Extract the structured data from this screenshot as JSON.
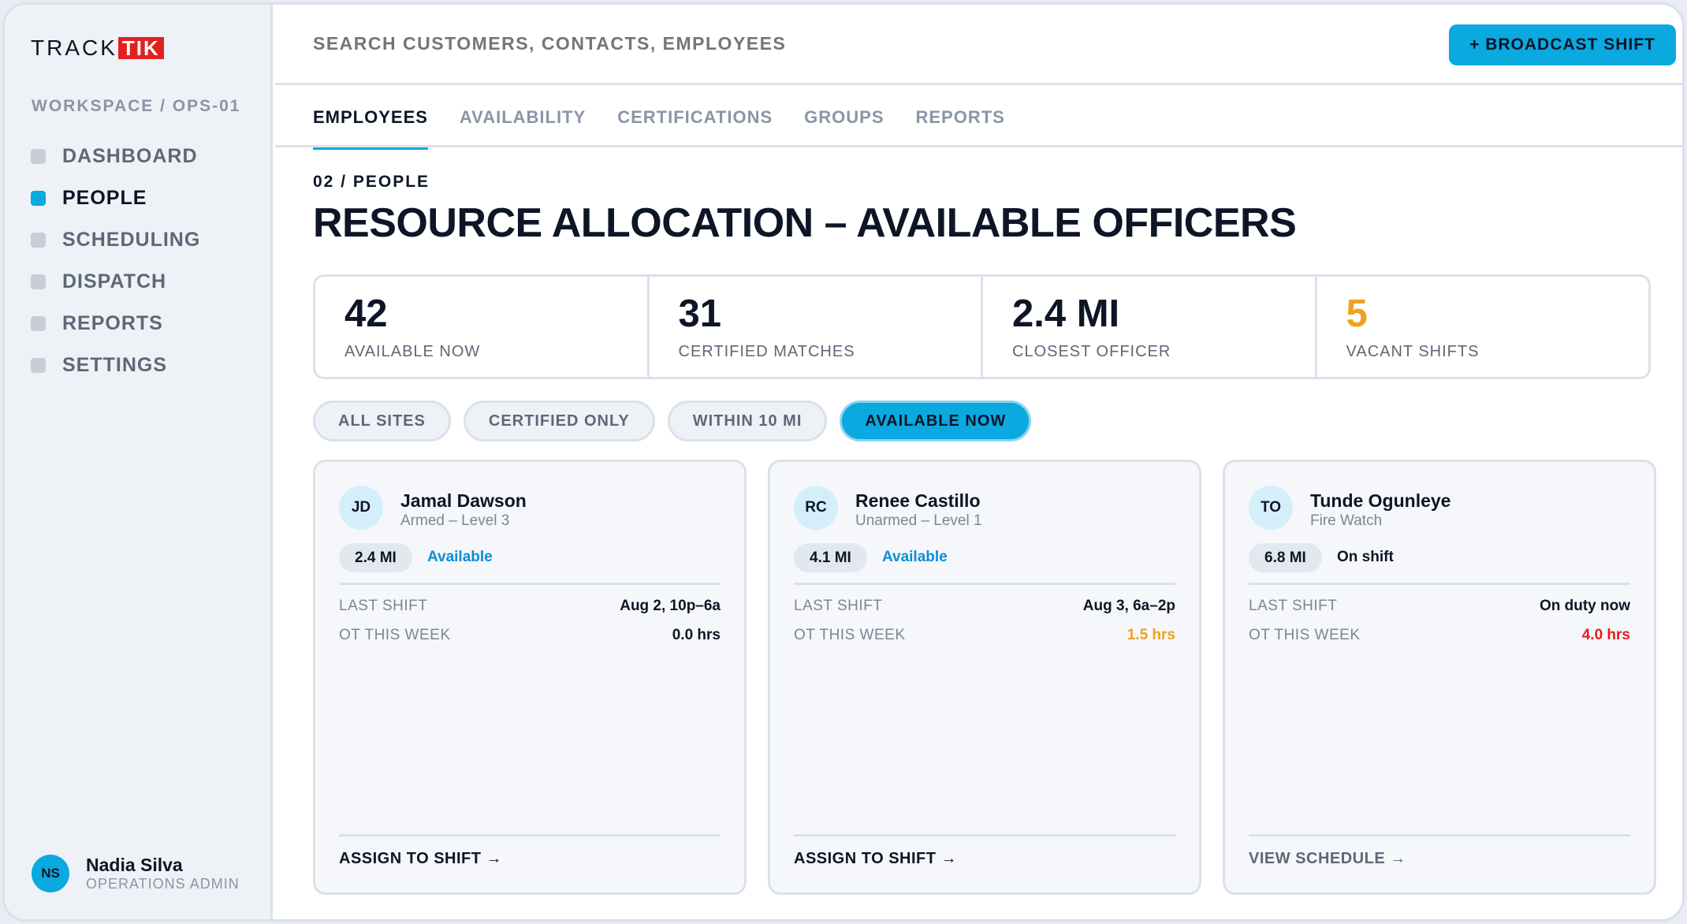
{
  "brand": {
    "track": "TRACK",
    "tik": "TIK"
  },
  "sidebar": {
    "workspace": "WORKSPACE / OPS-01",
    "items": [
      {
        "label": "DASHBOARD",
        "active": false
      },
      {
        "label": "PEOPLE",
        "active": true
      },
      {
        "label": "SCHEDULING",
        "active": false
      },
      {
        "label": "DISPATCH",
        "active": false
      },
      {
        "label": "REPORTS",
        "active": false
      },
      {
        "label": "SETTINGS",
        "active": false
      }
    ],
    "user": {
      "initials": "NS",
      "name": "Nadia Silva",
      "role": "OPERATIONS ADMIN"
    }
  },
  "topbar": {
    "search_placeholder": "SEARCH CUSTOMERS, CONTACTS, EMPLOYEES",
    "broadcast_label": "+ BROADCAST SHIFT"
  },
  "tabs": [
    {
      "label": "EMPLOYEES",
      "active": true
    },
    {
      "label": "AVAILABILITY",
      "active": false
    },
    {
      "label": "CERTIFICATIONS",
      "active": false
    },
    {
      "label": "GROUPS",
      "active": false
    },
    {
      "label": "REPORTS",
      "active": false
    }
  ],
  "page": {
    "breadcrumb": "02 / PEOPLE",
    "title": "RESOURCE ALLOCATION – AVAILABLE OFFICERS"
  },
  "stats": [
    {
      "value": "42",
      "label": "AVAILABLE NOW",
      "highlight": false
    },
    {
      "value": "31",
      "label": "CERTIFIED MATCHES",
      "highlight": false
    },
    {
      "value": "2.4 MI",
      "label": "CLOSEST OFFICER",
      "highlight": false
    },
    {
      "value": "5",
      "label": "VACANT SHIFTS",
      "highlight": true
    }
  ],
  "filters": [
    {
      "label": "ALL SITES",
      "active": false
    },
    {
      "label": "CERTIFIED ONLY",
      "active": false
    },
    {
      "label": "WITHIN 10 MI",
      "active": false
    },
    {
      "label": "AVAILABLE NOW",
      "active": true
    }
  ],
  "officers": [
    {
      "initials": "JD",
      "name": "Jamal Dawson",
      "role": "Armed – Level 3",
      "distance": "2.4 MI",
      "status": "Available",
      "status_type": "available",
      "last_shift_label": "LAST SHIFT",
      "last_shift": "Aug 2, 10p–6a",
      "ot_label": "OT THIS WEEK",
      "ot": "0.0 hrs",
      "ot_level": "normal",
      "action": "ASSIGN TO SHIFT →",
      "action_type": "primary"
    },
    {
      "initials": "RC",
      "name": "Renee Castillo",
      "role": "Unarmed – Level 1",
      "distance": "4.1 MI",
      "status": "Available",
      "status_type": "available",
      "last_shift_label": "LAST SHIFT",
      "last_shift": "Aug 3, 6a–2p",
      "ot_label": "OT THIS WEEK",
      "ot": "1.5 hrs",
      "ot_level": "orange",
      "action": "ASSIGN TO SHIFT →",
      "action_type": "primary"
    },
    {
      "initials": "TO",
      "name": "Tunde Ogunleye",
      "role": "Fire Watch",
      "distance": "6.8 MI",
      "status": "On shift",
      "status_type": "onshift",
      "last_shift_label": "LAST SHIFT",
      "last_shift": "On duty now",
      "ot_label": "OT THIS WEEK",
      "ot": "4.0 hrs",
      "ot_level": "red",
      "action": "VIEW SCHEDULE →",
      "action_type": "muted"
    }
  ],
  "colors": {
    "accent": "#0aa9e0",
    "brand_red": "#e1201f",
    "warning": "#f0a21c",
    "danger": "#e1201f",
    "ink": "#0d1526"
  }
}
